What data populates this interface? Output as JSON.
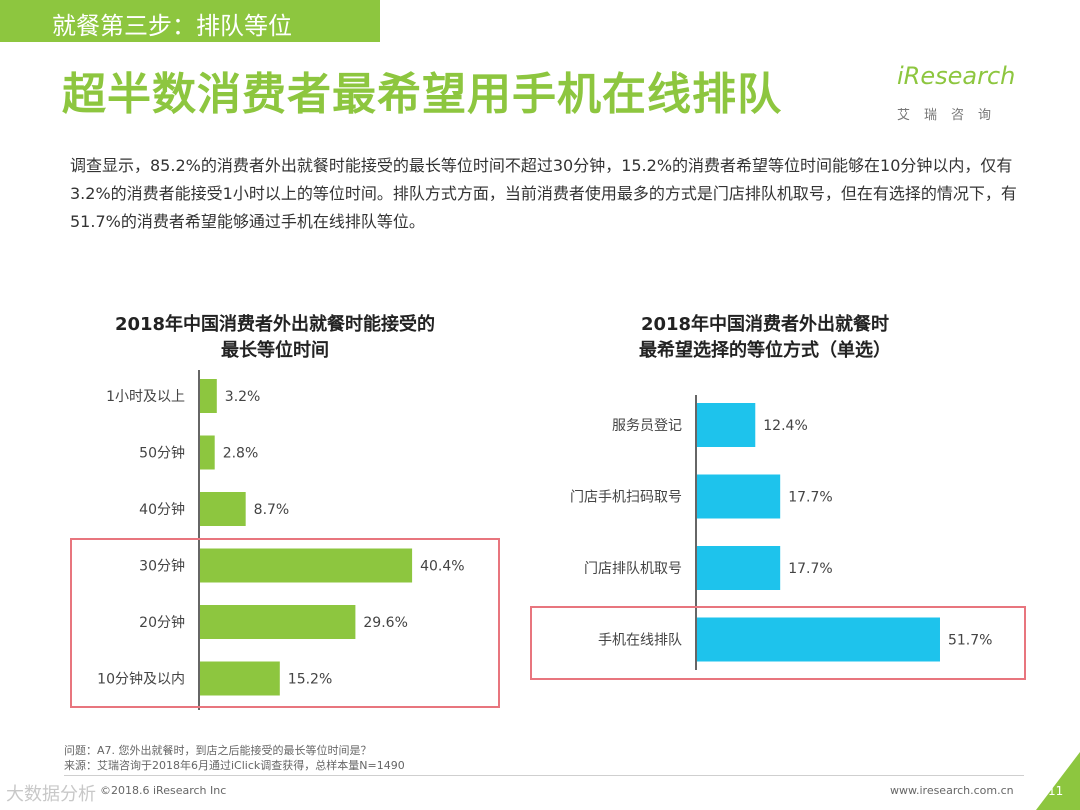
{
  "header": {
    "step": "就餐第三步：排队等位",
    "title": "超半数消费者最希望用手机在线排队",
    "logo_text": "iResearch",
    "logo_cn": "艾瑞咨询"
  },
  "intro": "调查显示，85.2%的消费者外出就餐时能接受的最长等位时间不超过30分钟，15.2%的消费者希望等位时间能够在10分钟以内，仅有3.2%的消费者能接受1小时以上的等位时间。排队方式方面，当前消费者使用最多的方式是门店排队机取号，但在有选择的情况下，有51.7%的消费者希望能够通过手机在线排队等位。",
  "chart_data": [
    {
      "type": "bar",
      "orientation": "horizontal",
      "title_line1": "2018年中国消费者外出就餐时能接受的",
      "title_line2": "最长等位时间",
      "categories": [
        "1小时及以上",
        "50分钟",
        "40分钟",
        "30分钟",
        "20分钟",
        "10分钟及以内"
      ],
      "values": [
        3.2,
        2.8,
        8.7,
        40.4,
        29.6,
        15.2
      ],
      "labels": [
        "3.2%",
        "2.8%",
        "8.7%",
        "40.4%",
        "29.6%",
        "15.2%"
      ],
      "highlighted": [
        "30分钟",
        "20分钟",
        "10分钟及以内"
      ],
      "color": "#8dc63f",
      "xlim": [
        0,
        55
      ]
    },
    {
      "type": "bar",
      "orientation": "horizontal",
      "title_line1": "2018年中国消费者外出就餐时",
      "title_line2": "最希望选择的等位方式（单选）",
      "categories": [
        "服务员登记",
        "门店手机扫码取号",
        "门店排队机取号",
        "手机在线排队"
      ],
      "values": [
        12.4,
        17.7,
        17.7,
        51.7
      ],
      "labels": [
        "12.4%",
        "17.7%",
        "17.7%",
        "51.7%"
      ],
      "highlighted": [
        "手机在线排队"
      ],
      "color": "#1ec3ec",
      "xlim": [
        0,
        60
      ]
    }
  ],
  "footer": {
    "question": "问题：A7. 您外出就餐时，到店之后能接受的最长等位时间是？",
    "source": "来源：艾瑞咨询于2018年6月通过iClick调查获得，总样本量N=1490",
    "copyright": "©2018.6 iResearch Inc",
    "website": "www.iresearch.com.cn",
    "page": "11",
    "watermark": "大数据分析"
  },
  "colors": {
    "accent": "#8dc63f",
    "bar2": "#1ec3ec",
    "highlight": "#e8757e"
  }
}
